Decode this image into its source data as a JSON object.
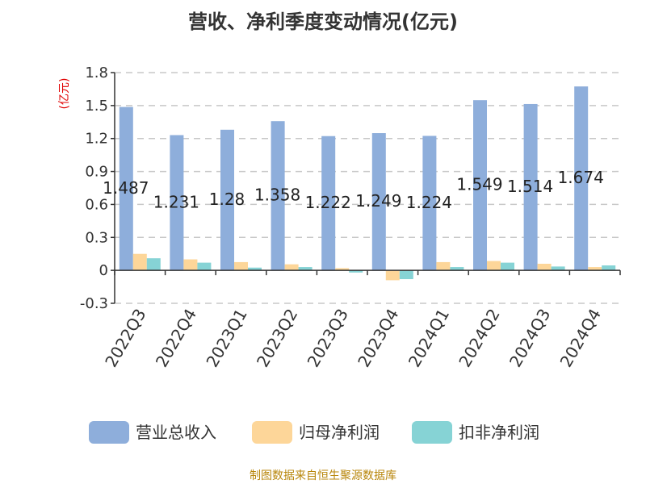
{
  "chart_data": {
    "type": "bar",
    "title": "营收、净利季度变动情况(亿元)",
    "ylabel": "(亿元)",
    "ylim": [
      -0.3,
      1.8
    ],
    "yticks": [
      "1.8",
      "1.5",
      "1.2",
      "0.9",
      "0.6",
      "0.3",
      "0",
      "-0.3"
    ],
    "yticks_values": [
      1.8,
      1.5,
      1.2,
      0.9,
      0.6,
      0.3,
      0,
      -0.3
    ],
    "grid": true,
    "legend_position": "bottom",
    "categories": [
      "2022Q3",
      "2022Q4",
      "2023Q1",
      "2023Q2",
      "2023Q3",
      "2023Q4",
      "2024Q1",
      "2024Q2",
      "2024Q3",
      "2024Q4"
    ],
    "series": [
      {
        "name": "营业总收入",
        "color": "#8eaedb",
        "values": [
          1.487,
          1.231,
          1.28,
          1.358,
          1.222,
          1.249,
          1.224,
          1.549,
          1.514,
          1.674
        ],
        "labels": [
          "1.487",
          "1.231",
          "1.28",
          "1.358",
          "1.222",
          "1.249",
          "1.224",
          "1.549",
          "1.514",
          "1.674"
        ]
      },
      {
        "name": "归母净利润",
        "color": "#fdd699",
        "values": [
          0.15,
          0.1,
          0.075,
          0.055,
          0.02,
          -0.09,
          0.075,
          0.085,
          0.06,
          0.03
        ]
      },
      {
        "name": "扣非净利润",
        "color": "#86d3d5",
        "values": [
          0.11,
          0.07,
          0.025,
          0.03,
          -0.02,
          -0.08,
          0.03,
          0.07,
          0.035,
          0.045
        ]
      }
    ],
    "source": "制图数据来自恒生聚源数据库"
  }
}
